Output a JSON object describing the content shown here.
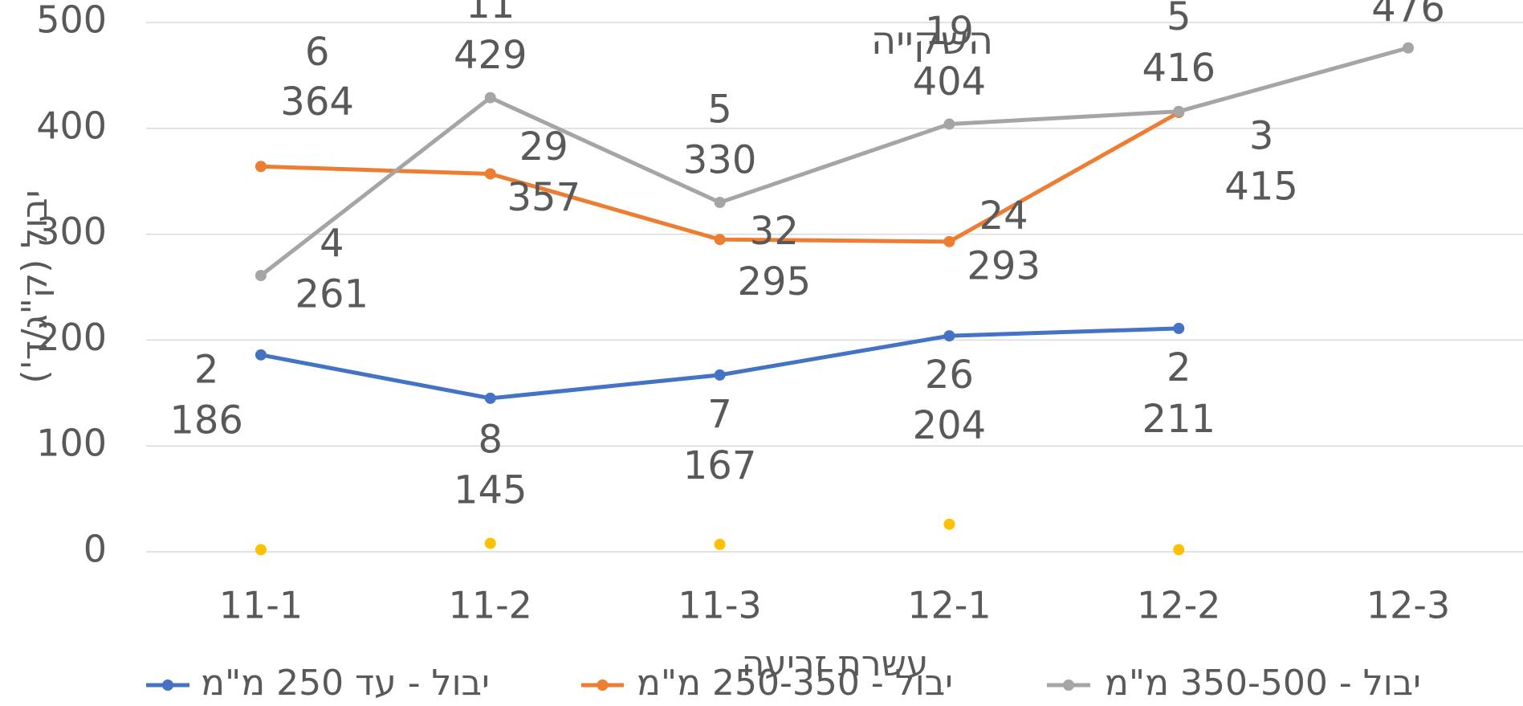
{
  "chart_data": {
    "type": "line",
    "title": "השקייה",
    "y_label": "יבול (ק\"ג/ד')",
    "x_label": "עשרת זריעה",
    "categories": [
      "11-1",
      "11-2",
      "11-3",
      "12-1",
      "12-2",
      "12-3"
    ],
    "ylim": [
      0,
      500
    ],
    "yticks": [
      0,
      100,
      200,
      300,
      400,
      500
    ],
    "grid": true,
    "legend": "bottom",
    "series": [
      {
        "name": "יבול - עד 250 מ\"מ",
        "color": "#4472c4",
        "values": [
          186,
          145,
          167,
          204,
          211,
          null
        ],
        "label_counts": [
          2,
          8,
          7,
          26,
          2,
          null
        ]
      },
      {
        "name": "יבול - 250-350 מ\"מ",
        "color": "#ed7d31",
        "values": [
          364,
          357,
          295,
          293,
          415,
          null
        ],
        "label_counts": [
          6,
          29,
          32,
          24,
          3,
          null
        ]
      },
      {
        "name": "יבול - 350-500 מ\"מ",
        "color": "#a5a5a5",
        "values": [
          261,
          429,
          330,
          404,
          416,
          476
        ],
        "label_counts": [
          4,
          11,
          5,
          19,
          5,
          null
        ]
      },
      {
        "color": "#ffc000",
        "values": [
          2,
          8,
          7,
          26,
          2,
          null
        ]
      }
    ]
  }
}
